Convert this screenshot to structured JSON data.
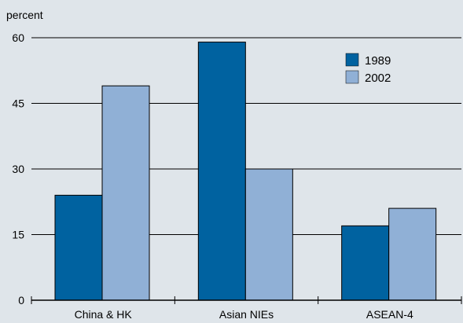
{
  "chart_data": {
    "type": "bar",
    "ylabel": "percent",
    "categories": [
      "China & HK",
      "Asian NIEs",
      "ASEAN-4"
    ],
    "series": [
      {
        "name": "1989",
        "values": [
          24,
          59,
          17
        ],
        "color": "#0062a0"
      },
      {
        "name": "2002",
        "values": [
          49,
          30,
          21
        ],
        "color": "#90b0d6"
      }
    ],
    "ylim": [
      0,
      60
    ],
    "yticks": [
      0,
      15,
      30,
      45,
      60
    ],
    "grid": true,
    "legend": "top-right",
    "background": "#dfe5ea"
  }
}
